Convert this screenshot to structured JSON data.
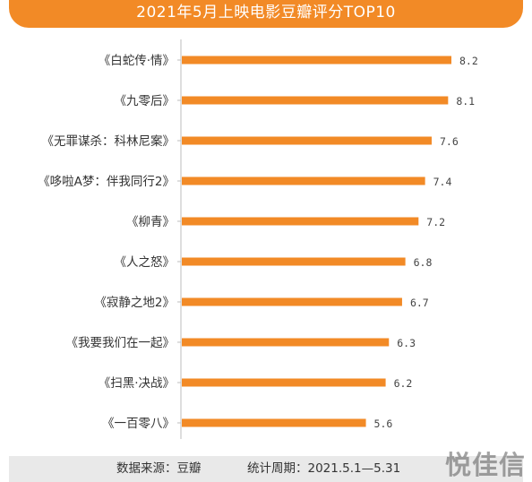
{
  "colors": {
    "accent": "#f28a26",
    "footer_bg": "#e9e9e9"
  },
  "header": {
    "title": "2021年5月上映电影豆瓣评分TOP10"
  },
  "footer": {
    "source": "数据来源：豆瓣",
    "period": "统计周期：2021.5.1—5.31"
  },
  "watermark": {
    "text": "悦佳信"
  },
  "chart_data": {
    "type": "bar",
    "orientation": "horizontal",
    "title": "2021年5月上映电影豆瓣评分TOP10",
    "categories": [
      "《白蛇传·情》",
      "《九零后》",
      "《无罪谋杀：科林尼案》",
      "《哆啦A梦：伴我同行2》",
      "《柳青》",
      "《人之怒》",
      "《寂静之地2》",
      "《我要我们在一起》",
      "《扫黑·决战》",
      "《一百零八》"
    ],
    "values": [
      8.2,
      8.1,
      7.6,
      7.4,
      7.2,
      6.8,
      6.7,
      6.3,
      6.2,
      5.6
    ],
    "value_labels": [
      "8.2",
      "8.1",
      "7.6",
      "7.4",
      "7.2",
      "6.8",
      "6.7",
      "6.3",
      "6.2",
      "5.6"
    ],
    "grid": false,
    "legend": "none"
  }
}
